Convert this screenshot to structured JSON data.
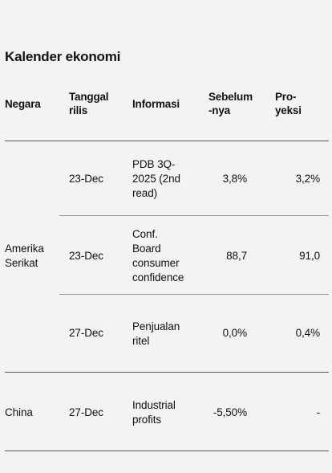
{
  "title": "Kalender ekonomi",
  "headers": {
    "negara": "Negara",
    "tanggal_line1": "Tanggal",
    "tanggal_line2": "rilis",
    "informasi": "Informasi",
    "sebelumnya_line1": "Sebelum",
    "sebelumnya_line2": "-nya",
    "proyeksi_line1": "Pro-",
    "proyeksi_line2": "yeksi"
  },
  "groups": [
    {
      "country_line1": "Amerika",
      "country_line2": "Serikat",
      "rows": [
        {
          "date": "23-Dec",
          "info": [
            "PDB 3Q-",
            "2025 (2nd",
            "read)"
          ],
          "prev": "3,8%",
          "proj": "3,2%"
        },
        {
          "date": "23-Dec",
          "info": [
            "Conf.",
            "Board",
            "consumer",
            "confidence"
          ],
          "prev": "88,7",
          "proj": "91,0"
        },
        {
          "date": "27-Dec",
          "info": [
            "Penjualan",
            "ritel"
          ],
          "prev": "0,0%",
          "proj": "0,4%"
        }
      ]
    },
    {
      "country_line1": "China",
      "rows": [
        {
          "date": "27-Dec",
          "info": [
            "Industrial",
            "profits"
          ],
          "prev": "-5,50%",
          "proj": "-"
        }
      ]
    }
  ]
}
